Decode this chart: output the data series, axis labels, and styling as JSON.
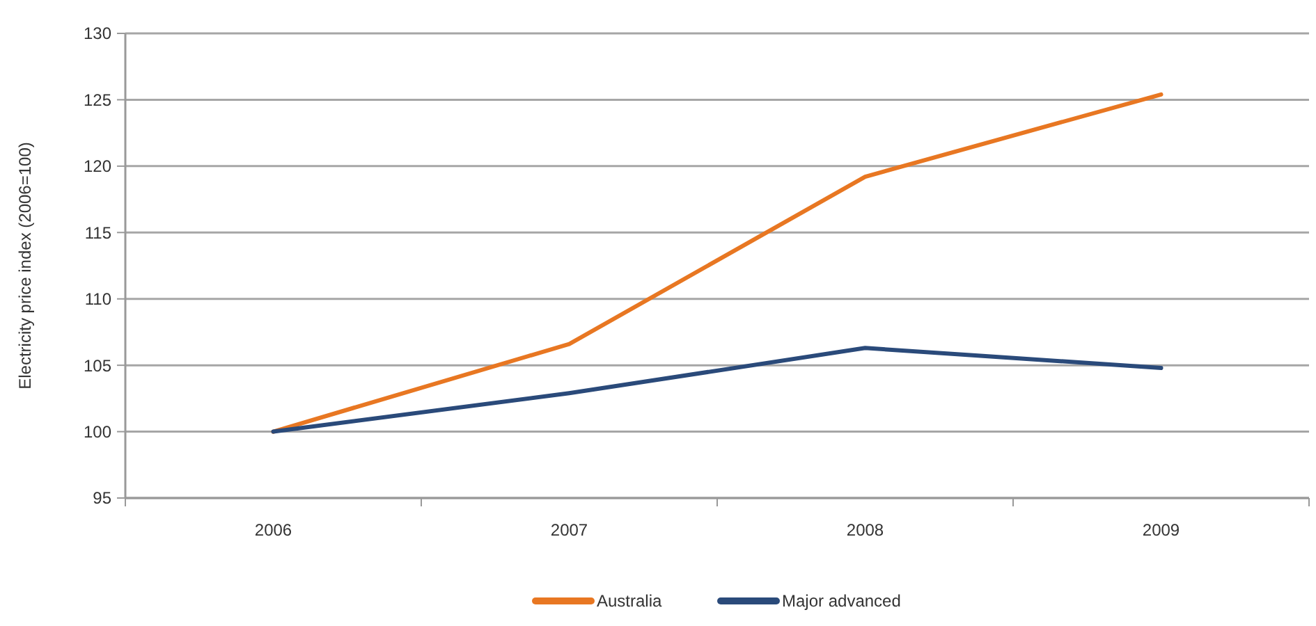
{
  "chart_data": {
    "type": "line",
    "ylabel": "Electricity price index (2006=100)",
    "categories": [
      "2006",
      "2007",
      "2008",
      "2009"
    ],
    "series": [
      {
        "name": "Australia",
        "color": "#e87722",
        "values": [
          100,
          106.6,
          119.2,
          125.4
        ]
      },
      {
        "name": "Major advanced",
        "color": "#2a4a7a",
        "values": [
          100,
          102.9,
          106.3,
          104.8
        ]
      }
    ],
    "ylim": [
      95,
      130
    ],
    "yticks": [
      95,
      100,
      105,
      110,
      115,
      120,
      125,
      130
    ],
    "grid": "y",
    "legend": "bottom",
    "marker": "none",
    "line_style": "solid"
  }
}
